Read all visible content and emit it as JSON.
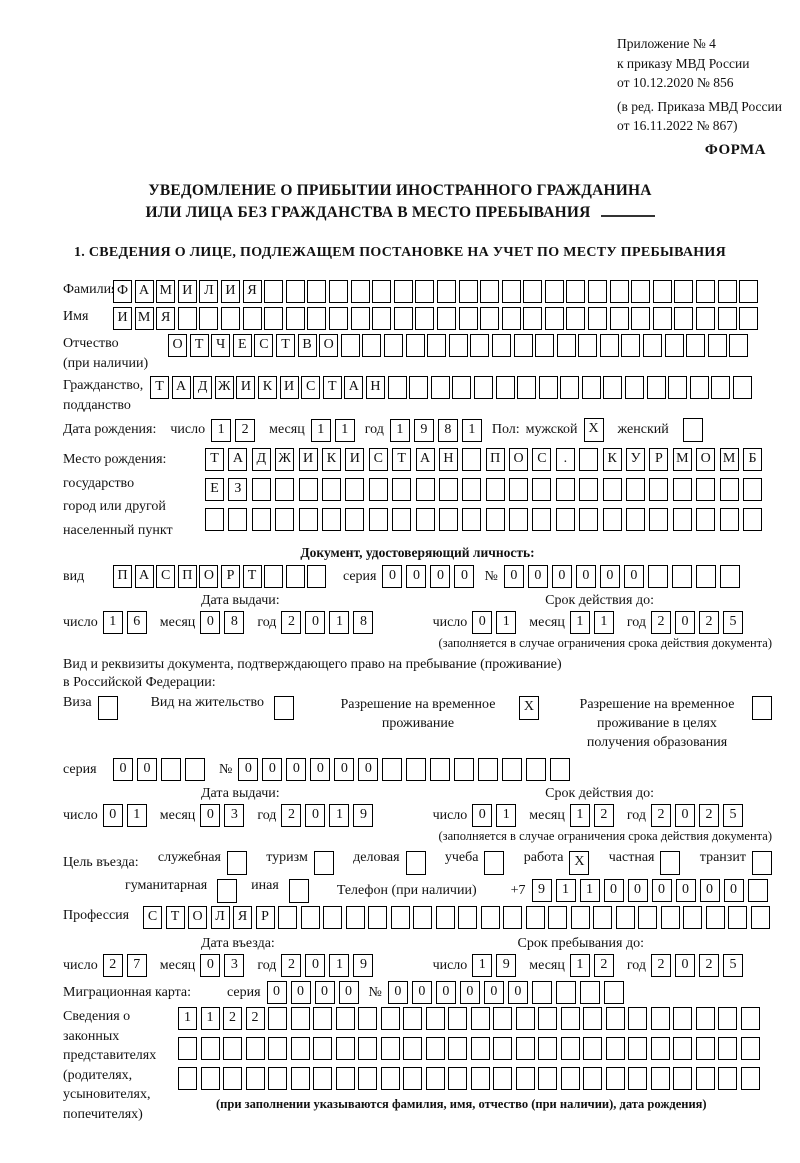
{
  "accent_color": "#000000",
  "page_background": "#ffffff",
  "header": {
    "annex_lines": [
      "Приложение № 4",
      "к приказу МВД России",
      "от 10.12.2020 № 856"
    ],
    "edition_lines": [
      "(в ред. Приказа МВД России",
      "от 16.11.2022 № 867)"
    ],
    "form_label": "ФОРМА"
  },
  "title": {
    "line1": "УВЕДОМЛЕНИЕ О ПРИБЫТИИ ИНОСТРАННОГО ГРАЖДАНИНА",
    "line2": "ИЛИ ЛИЦА БЕЗ ГРАЖДАНСТВА В МЕСТО ПРЕБЫВАНИЯ"
  },
  "section1_heading": "1. СВЕДЕНИЯ О ЛИЦЕ, ПОДЛЕЖАЩЕМ ПОСТАНОВКЕ НА УЧЕТ ПО МЕСТУ ПРЕБЫВАНИЯ",
  "date_labels": {
    "day": "число",
    "month": "месяц",
    "year": "год"
  },
  "surname": {
    "label": "Фамилия",
    "boxes": {
      "count": 30,
      "value": "ФАМИЛИЯ"
    }
  },
  "name": {
    "label": "Имя",
    "boxes": {
      "count": 30,
      "value": "ИМЯ"
    }
  },
  "patronymic": {
    "label1": "Отчество",
    "label2": "(при наличии)",
    "boxes": {
      "count": 27,
      "value": "ОТЧЕСТВО"
    }
  },
  "citizenship": {
    "label1": "Гражданство,",
    "label2": "подданство",
    "boxes": {
      "count": 28,
      "value": "ТАДЖИКИСТАН"
    }
  },
  "birth_date": {
    "label": "Дата рождения:",
    "day": {
      "count": 2,
      "value": "12"
    },
    "month": {
      "count": 2,
      "value": "11"
    },
    "year": {
      "count": 4,
      "value": "1981"
    },
    "sex_label": "Пол:",
    "male_label": "мужской",
    "male_box": {
      "count": 1,
      "value": "X"
    },
    "female_label": "женский",
    "female_box": {
      "count": 1,
      "value": ""
    }
  },
  "birth_place": {
    "label_lines": [
      "Место рождения:",
      "государство",
      "город или другой",
      "населенный пункт"
    ],
    "row1": {
      "count": 24,
      "value": "ТАДЖИКИСТАН ПОС. КУРМОМБ"
    },
    "row2": {
      "count": 24,
      "value": "ЕЗ"
    },
    "row3": {
      "count": 24,
      "value": ""
    }
  },
  "identity_doc": {
    "heading": "Документ, удостоверяющий личность:",
    "vid_label": "вид",
    "vid": {
      "count": 10,
      "value": "ПАСПОРТ"
    },
    "series_label": "серия",
    "series": {
      "count": 4,
      "value": "0000"
    },
    "number_label": "№",
    "number": {
      "count": 10,
      "value": "000000"
    },
    "issue_header": "Дата выдачи:",
    "valid_header": "Срок действия до:",
    "issue": {
      "day": {
        "count": 2,
        "value": "16"
      },
      "month": {
        "count": 2,
        "value": "08"
      },
      "year": {
        "count": 4,
        "value": "2018"
      }
    },
    "valid": {
      "day": {
        "count": 2,
        "value": "01"
      },
      "month": {
        "count": 2,
        "value": "11"
      },
      "year": {
        "count": 4,
        "value": "2025"
      }
    },
    "note": "(заполняется в случае ограничения срока действия документа)"
  },
  "residence": {
    "line1": "Вид и реквизиты документа, подтверждающего право на пребывание (проживание)",
    "line2": "в Российской Федерации:",
    "options": [
      {
        "label": "Виза",
        "box": {
          "count": 1,
          "value": ""
        }
      },
      {
        "label": "Вид на жительство",
        "box": {
          "count": 1,
          "value": ""
        }
      },
      {
        "label": "Разрешение на временное проживание",
        "box": {
          "count": 1,
          "value": "X"
        }
      },
      {
        "label": "Разрешение на временное проживание в целях получения образования",
        "box": {
          "count": 1,
          "value": ""
        }
      }
    ]
  },
  "residence_doc": {
    "series_label": "серия",
    "series": {
      "count": 4,
      "value": "00"
    },
    "number_label": "№",
    "number": {
      "count": 14,
      "value": "000000"
    },
    "issue_header": "Дата выдачи:",
    "valid_header": "Срок действия до:",
    "issue": {
      "day": {
        "count": 2,
        "value": "01"
      },
      "month": {
        "count": 2,
        "value": "03"
      },
      "year": {
        "count": 4,
        "value": "2019"
      }
    },
    "valid": {
      "day": {
        "count": 2,
        "value": "01"
      },
      "month": {
        "count": 2,
        "value": "12"
      },
      "year": {
        "count": 4,
        "value": "2025"
      }
    },
    "note": "(заполняется в случае ограничения срока действия документа)"
  },
  "purpose": {
    "label": "Цель въезда:",
    "options": [
      {
        "label": "служебная",
        "box": {
          "count": 1,
          "value": ""
        }
      },
      {
        "label": "туризм",
        "box": {
          "count": 1,
          "value": ""
        }
      },
      {
        "label": "деловая",
        "box": {
          "count": 1,
          "value": ""
        }
      },
      {
        "label": "учеба",
        "box": {
          "count": 1,
          "value": ""
        }
      },
      {
        "label": "работа",
        "box": {
          "count": 1,
          "value": "X"
        }
      },
      {
        "label": "частная",
        "box": {
          "count": 1,
          "value": ""
        }
      },
      {
        "label": "транзит",
        "box": {
          "count": 1,
          "value": ""
        }
      }
    ],
    "options2": [
      {
        "label": "гуманитарная",
        "box": {
          "count": 1,
          "value": ""
        }
      },
      {
        "label": "иная",
        "box": {
          "count": 1,
          "value": ""
        }
      }
    ],
    "phone_label": "Телефон (при наличии)",
    "phone_prefix": "+7",
    "phone": {
      "count": 10,
      "value": "911000000"
    }
  },
  "profession": {
    "label": "Профессия",
    "boxes": {
      "count": 28,
      "value": "СТОЛЯР"
    }
  },
  "entry": {
    "entry_header": "Дата въезда:",
    "stay_header": "Срок пребывания до:",
    "entry_date": {
      "day": {
        "count": 2,
        "value": "27"
      },
      "month": {
        "count": 2,
        "value": "03"
      },
      "year": {
        "count": 4,
        "value": "2019"
      }
    },
    "stay_date": {
      "day": {
        "count": 2,
        "value": "19"
      },
      "month": {
        "count": 2,
        "value": "12"
      },
      "year": {
        "count": 4,
        "value": "2025"
      }
    }
  },
  "migration_card": {
    "label": "Миграционная карта:",
    "series_label": "серия",
    "series": {
      "count": 4,
      "value": "0000"
    },
    "number_label": "№",
    "number": {
      "count": 10,
      "value": "000000"
    }
  },
  "legal_reps": {
    "label_lines": [
      "Сведения о",
      "законных",
      "представителях",
      "(родителях,",
      "усыновителях,",
      "попечителях)"
    ],
    "row1": {
      "count": 26,
      "value": "1122"
    },
    "row2": {
      "count": 26,
      "value": ""
    },
    "row3": {
      "count": 26,
      "value": ""
    },
    "note": "(при заполнении указываются фамилия, имя, отчество (при наличии), дата рождения)"
  }
}
